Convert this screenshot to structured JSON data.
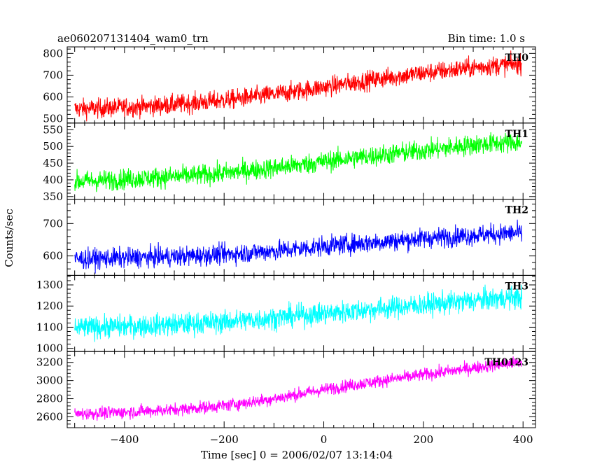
{
  "header": {
    "title": "ae060207131404_wam0_trn",
    "bin_time": "Bin time: 1.0 s"
  },
  "axes": {
    "xlabel": "Time [sec] 0 = 2006/02/07 13:14:04",
    "ylabel": "Counts/sec"
  },
  "chart_data": {
    "type": "line",
    "xlim": [
      -515,
      425
    ],
    "x_ticks": [
      -400,
      -200,
      0,
      200,
      400
    ],
    "x_tick_labels": [
      "−400",
      "−200",
      "0",
      "200",
      "400"
    ],
    "x_sample": [
      -500,
      -450,
      -400,
      -350,
      -300,
      -250,
      -200,
      -150,
      -100,
      -50,
      0,
      50,
      100,
      150,
      200,
      250,
      300,
      350,
      400
    ],
    "panels": [
      {
        "name": "TH0",
        "color": "#ff0000",
        "ylim": [
          480,
          830
        ],
        "y_ticks": [
          500,
          600,
          700,
          800
        ],
        "y_tick_labels": [
          "500",
          "600",
          "700",
          "800"
        ],
        "trend": [
          545,
          548,
          552,
          557,
          565,
          575,
          585,
          598,
          612,
          628,
          645,
          662,
          680,
          695,
          710,
          722,
          735,
          745,
          752
        ],
        "noise": 32
      },
      {
        "name": "TH1",
        "color": "#00ff00",
        "ylim": [
          342,
          570
        ],
        "y_ticks": [
          350,
          400,
          450,
          500,
          550
        ],
        "y_tick_labels": [
          "350",
          "400",
          "450",
          "500",
          "550"
        ],
        "trend": [
          395,
          398,
          402,
          406,
          410,
          414,
          420,
          428,
          436,
          444,
          455,
          464,
          472,
          480,
          488,
          496,
          505,
          510,
          513
        ],
        "noise": 22
      },
      {
        "name": "TH2",
        "color": "#0000ff",
        "ylim": [
          540,
          775
        ],
        "y_ticks": [
          600,
          700
        ],
        "y_tick_labels": [
          "600",
          "700"
        ],
        "trend": [
          590,
          592,
          594,
          596,
          598,
          601,
          605,
          610,
          616,
          622,
          630,
          636,
          642,
          648,
          654,
          659,
          664,
          668,
          671
        ],
        "noise": 22
      },
      {
        "name": "TH3",
        "color": "#00ffff",
        "ylim": [
          985,
          1345
        ],
        "y_ticks": [
          1000,
          1100,
          1200,
          1300
        ],
        "y_tick_labels": [
          "1000",
          "1100",
          "1200",
          "1300"
        ],
        "trend": [
          1095,
          1100,
          1104,
          1108,
          1112,
          1118,
          1125,
          1134,
          1144,
          1155,
          1165,
          1175,
          1185,
          1195,
          1205,
          1215,
          1225,
          1235,
          1242
        ],
        "noise": 38
      },
      {
        "name": "TH0123",
        "color": "#ff00ff",
        "ylim": [
          2480,
          3320
        ],
        "y_ticks": [
          2600,
          2800,
          3000,
          3200
        ],
        "y_tick_labels": [
          "2600",
          "2800",
          "3000",
          "3200"
        ],
        "trend": [
          2630,
          2640,
          2652,
          2665,
          2680,
          2700,
          2725,
          2760,
          2800,
          2850,
          2900,
          2945,
          2985,
          3025,
          3065,
          3100,
          3140,
          3175,
          3200
        ],
        "noise": 50
      }
    ]
  }
}
